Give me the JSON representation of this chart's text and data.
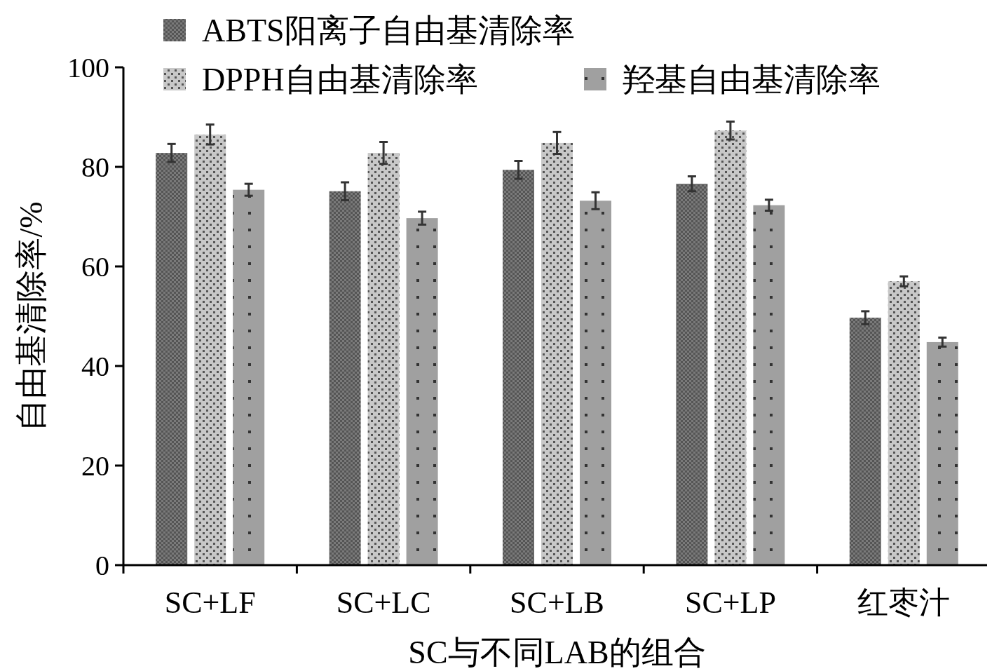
{
  "chart_data": {
    "type": "bar",
    "xlabel": "SC与不同LAB的组合",
    "ylabel": "自由基清除率/%",
    "categories": [
      "SC+LF",
      "SC+LC",
      "SC+LB",
      "SC+LP",
      "红枣汁"
    ],
    "series": [
      {
        "name": "ABTS阳离子自由基清除率",
        "color": "#7a7a7a",
        "values": [
          82.8,
          75.1,
          79.4,
          76.6,
          49.7
        ],
        "errors": [
          1.8,
          1.8,
          1.8,
          1.5,
          1.3
        ]
      },
      {
        "name": "DPPH自由基清除率",
        "color": "#c8c8c8",
        "values": [
          86.5,
          82.8,
          84.8,
          87.3,
          57.0
        ],
        "errors": [
          2,
          2.2,
          2.2,
          1.8,
          1
        ]
      },
      {
        "name": "羟基自由基清除率",
        "color": "#a0a0a0",
        "values": [
          75.4,
          69.7,
          73.2,
          72.3,
          44.8
        ],
        "errors": [
          1.2,
          1.3,
          1.7,
          1.1,
          0.9
        ]
      }
    ],
    "ylim": [
      0,
      100
    ],
    "yticks": [
      0,
      20,
      40,
      60,
      80,
      100
    ],
    "grid": false,
    "legend": "top"
  }
}
